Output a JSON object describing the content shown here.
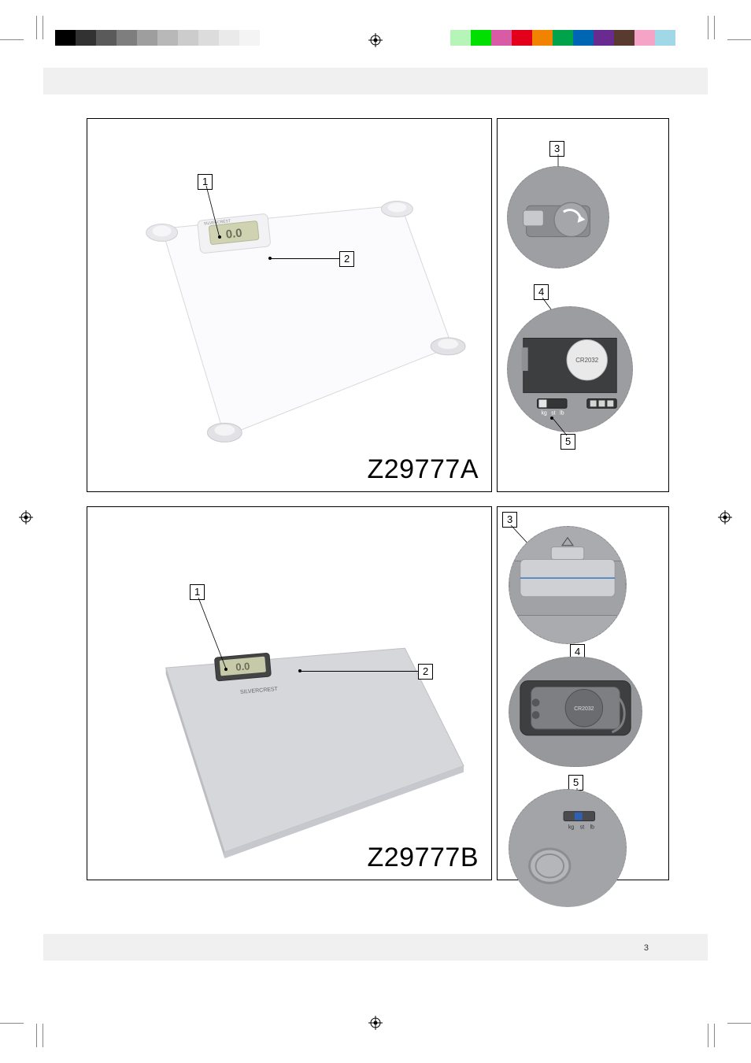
{
  "page_number": "3",
  "products": [
    {
      "model": "Z29777A",
      "callouts_main": [
        {
          "num": "1"
        },
        {
          "num": "2"
        }
      ],
      "callouts_side": [
        {
          "num": "3"
        },
        {
          "num": "4"
        },
        {
          "num": "5"
        }
      ],
      "battery_label": "CR2032",
      "unit_labels": [
        "kg",
        "st",
        "lb"
      ]
    },
    {
      "model": "Z29777B",
      "callouts_main": [
        {
          "num": "1"
        },
        {
          "num": "2"
        }
      ],
      "callouts_side": [
        {
          "num": "3"
        },
        {
          "num": "4"
        },
        {
          "num": "5"
        }
      ],
      "battery_label": "CR2032",
      "unit_labels": [
        "kg",
        "st",
        "lb"
      ]
    }
  ],
  "colorbar_left": [
    "#000000",
    "#323232",
    "#5a5a5a",
    "#7e7e7e",
    "#9e9e9e",
    "#b8b8b8",
    "#cccccc",
    "#dcdcdc",
    "#eaeaea",
    "#f4f4f4",
    "#ffffff"
  ],
  "colorbar_right": [
    "#b5f5b8",
    "#00e000",
    "#d95ba6",
    "#e2001a",
    "#f08400",
    "#00a34a",
    "#0066b3",
    "#6a2b90",
    "#583a2e",
    "#f5a4c8",
    "#a0d8e8",
    "#ffffff"
  ],
  "colors": {
    "panel_border": "#000000",
    "bg": "#ffffff",
    "scale_glass": "#f5f5f7",
    "scale_grey": "#c7c8cc",
    "battery_bg_a": "#9b9da0",
    "battery_bg_b": "#86888c",
    "lcd_bg": "#bfc2a0"
  }
}
